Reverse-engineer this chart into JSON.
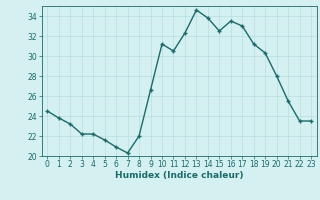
{
  "x": [
    0,
    1,
    2,
    3,
    4,
    5,
    6,
    7,
    8,
    9,
    10,
    11,
    12,
    13,
    14,
    15,
    16,
    17,
    18,
    19,
    20,
    21,
    22,
    23
  ],
  "y": [
    24.5,
    23.8,
    23.2,
    22.2,
    22.2,
    21.6,
    20.9,
    20.3,
    22.0,
    26.6,
    31.2,
    30.5,
    32.3,
    34.6,
    33.8,
    32.5,
    33.5,
    33.0,
    31.2,
    30.3,
    28.0,
    25.5,
    23.5,
    23.5
  ],
  "line_color": "#1a6b6b",
  "marker": "+",
  "marker_size": 3,
  "bg_color": "#d4f0f0",
  "grid_color": "#b8dede",
  "xlabel": "Humidex (Indice chaleur)",
  "ylim": [
    20,
    35
  ],
  "xlim": [
    -0.5,
    23.5
  ],
  "yticks": [
    20,
    22,
    24,
    26,
    28,
    30,
    32,
    34
  ],
  "xticks": [
    0,
    1,
    2,
    3,
    4,
    5,
    6,
    7,
    8,
    9,
    10,
    11,
    12,
    13,
    14,
    15,
    16,
    17,
    18,
    19,
    20,
    21,
    22,
    23
  ],
  "font_color": "#1a6b6b",
  "tick_fontsize": 5.5,
  "xlabel_fontsize": 6.5,
  "linewidth": 1.0,
  "markeredgewidth": 1.0
}
